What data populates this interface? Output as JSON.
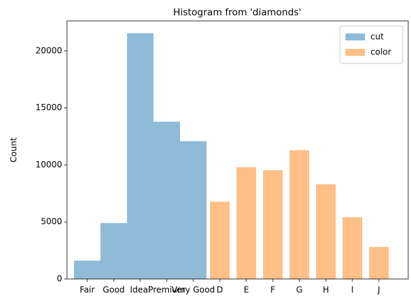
{
  "chart_data": {
    "type": "bar",
    "title": "Histogram from 'diamonds'",
    "ylabel": "Count",
    "categories": [
      "Fair",
      "Good",
      "Ideal",
      "Premium",
      "Very Good",
      "D",
      "E",
      "F",
      "G",
      "H",
      "I",
      "J"
    ],
    "series": [
      {
        "name": "cut",
        "color": "#8fbbd9",
        "values": [
          1610,
          4906,
          21551,
          13791,
          12082,
          null,
          null,
          null,
          null,
          null,
          null,
          null
        ]
      },
      {
        "name": "color",
        "color": "#ffbf86",
        "values": [
          null,
          null,
          null,
          null,
          null,
          6775,
          9797,
          9542,
          11292,
          8304,
          5422,
          2808
        ]
      }
    ],
    "ylim": [
      0,
      22628
    ],
    "yticks": [
      0,
      5000,
      10000,
      15000,
      20000
    ],
    "grid": false,
    "legend": "upper right"
  }
}
